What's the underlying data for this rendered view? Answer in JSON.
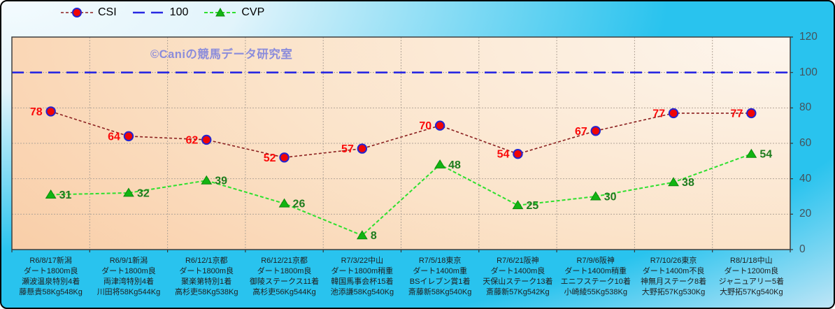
{
  "watermark": "©Caniの競馬データ研究室",
  "chart_data": {
    "type": "line",
    "title": "",
    "xlabel": "",
    "ylabel": "",
    "ylim": [
      0,
      120
    ],
    "yticks": [
      0,
      20,
      40,
      60,
      80,
      100,
      120
    ],
    "grid": true,
    "legend_position": "top",
    "categories": [
      [
        "R6/8/17新潟",
        "ダート1800m良",
        "瀬波温泉特別4着",
        "藤懸貴58Kg548Kg"
      ],
      [
        "R6/9/1新潟",
        "ダート1800m良",
        "両津湾特別4着",
        "川田将58Kg544Kg"
      ],
      [
        "R6/12/1京都",
        "ダート1800m良",
        "聚楽第特別1着",
        "高杉吏58Kg538Kg"
      ],
      [
        "R6/12/21京都",
        "ダート1800m良",
        "御陵ステークス11着",
        "高杉吏56Kg544Kg"
      ],
      [
        "R7/3/22中山",
        "ダート1800m稍重",
        "韓国馬事会杯15着",
        "池添謙58Kg540Kg"
      ],
      [
        "R7/5/18東京",
        "ダート1400m重",
        "BSイレブン賞1着",
        "斎藤新58Kg540Kg"
      ],
      [
        "R7/6/21阪神",
        "ダート1400m良",
        "天保山ステーク13着",
        "斎藤新57Kg542Kg"
      ],
      [
        "R7/9/6阪神",
        "ダート1400m稍重",
        "エニフステーク10着",
        "小崎綾55Kg538Kg"
      ],
      [
        "R7/10/26東京",
        "ダート1400m不良",
        "神無月ステーク8着",
        "大野拓57Kg530Kg"
      ],
      [
        "R8/1/18中山",
        "ダート1200m良",
        "ジャニュアリー5着",
        "大野拓57Kg540Kg"
      ]
    ],
    "series": [
      {
        "name": "CSI",
        "kind": "line",
        "values": [
          78,
          64,
          62,
          52,
          57,
          70,
          54,
          67,
          77,
          77
        ],
        "line_color": "#8b1f1f",
        "line_dash": "4,3",
        "line_width": 1.6,
        "marker": "circle",
        "marker_fill": "#f00505",
        "marker_edge": "#2424d0",
        "label_color": "#fa0a0a",
        "label_side": "left"
      },
      {
        "name": "100",
        "kind": "refline",
        "value": 100,
        "line_color": "#2828e2",
        "line_dash": "17,9",
        "line_width": 2.6
      },
      {
        "name": "CVP",
        "kind": "line",
        "values": [
          31,
          32,
          39,
          26,
          8,
          48,
          25,
          30,
          38,
          54
        ],
        "line_color": "#2ee02e",
        "line_dash": "5,3",
        "line_width": 2,
        "marker": "triangle",
        "marker_fill": "#12b412",
        "marker_edge": "#0c8a0c",
        "label_color": "#1d7c1d",
        "label_side": "right"
      }
    ],
    "colors": {
      "plot_border": "#3e3e3e",
      "gridline": "#b2a598",
      "tick": "#333333",
      "ytick_text": "#44525b",
      "xlabel_text": "#1e1e1e"
    }
  }
}
